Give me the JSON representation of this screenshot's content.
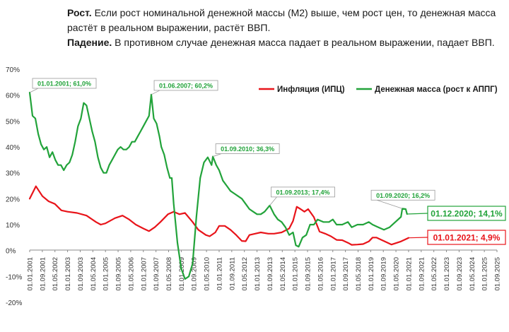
{
  "heading": {
    "growth_label": "Рост.",
    "growth_text": "Если рост номинальной денежной массы (М2) выше, чем рост цен, то денежная масса растёт в реальном выражении, растёт ВВП.",
    "decline_label": "Падение.",
    "decline_text": "В противном случае денежная масса падает в реальном выражении, падает ВВП."
  },
  "chart_data": {
    "type": "line",
    "title": "",
    "xlabel": "",
    "ylabel": "",
    "ylim": [
      -20,
      70
    ],
    "y_ticks": [
      "-20%",
      "-10%",
      "0%",
      "10%",
      "20%",
      "30%",
      "40%",
      "50%",
      "60%",
      "70%"
    ],
    "x_ticks": [
      "01.01.2001",
      "01.09.2001",
      "01.05.2002",
      "01.01.2003",
      "01.09.2003",
      "01.05.2004",
      "01.01.2005",
      "01.09.2005",
      "01.05.2006",
      "01.01.2007",
      "01.09.2007",
      "01.05.2008",
      "01.01.2009",
      "01.09.2009",
      "01.05.2010",
      "01.01.2011",
      "01.09.2011",
      "01.05.2012",
      "01.01.2013",
      "01.09.2013",
      "01.05.2014",
      "01.01.2015",
      "01.09.2015",
      "01.05.2016",
      "01.01.2017",
      "01.09.2017",
      "01.05.2018",
      "01.01.2019",
      "01.09.2019",
      "01.05.2020",
      "01.01.2021",
      "01.09.2021",
      "01.05.2022",
      "01.01.2023",
      "01.09.2023",
      "01.05.2024",
      "01.01.2025",
      "01.09.2025"
    ],
    "grid": false,
    "legend": "top-right",
    "series": [
      {
        "name": "Инфляция (ИПЦ)",
        "color": "#e8141a",
        "points": [
          [
            2001.0,
            20
          ],
          [
            2001.33,
            24.8
          ],
          [
            2001.67,
            21
          ],
          [
            2002.0,
            19
          ],
          [
            2002.33,
            18
          ],
          [
            2002.67,
            15.5
          ],
          [
            2003.0,
            15
          ],
          [
            2003.5,
            14.5
          ],
          [
            2004.0,
            13.5
          ],
          [
            2004.5,
            11
          ],
          [
            2004.75,
            10
          ],
          [
            2005.0,
            10.5
          ],
          [
            2005.5,
            12.5
          ],
          [
            2005.9,
            13.5
          ],
          [
            2006.25,
            12
          ],
          [
            2006.6,
            10
          ],
          [
            2007.0,
            8.5
          ],
          [
            2007.3,
            7.5
          ],
          [
            2007.6,
            9
          ],
          [
            2007.9,
            11
          ],
          [
            2008.3,
            14
          ],
          [
            2008.6,
            15
          ],
          [
            2008.9,
            14
          ],
          [
            2009.2,
            14.5
          ],
          [
            2009.6,
            11
          ],
          [
            2009.9,
            8
          ],
          [
            2010.3,
            6
          ],
          [
            2010.5,
            5.5
          ],
          [
            2010.8,
            7
          ],
          [
            2011.0,
            9.5
          ],
          [
            2011.3,
            9.5
          ],
          [
            2011.6,
            8
          ],
          [
            2011.9,
            6
          ],
          [
            2012.2,
            3.7
          ],
          [
            2012.4,
            3.6
          ],
          [
            2012.6,
            6
          ],
          [
            2012.9,
            6.5
          ],
          [
            2013.2,
            7
          ],
          [
            2013.6,
            6.5
          ],
          [
            2013.9,
            6.5
          ],
          [
            2014.3,
            7
          ],
          [
            2014.7,
            8.5
          ],
          [
            2014.9,
            11.4
          ],
          [
            2015.1,
            16.9
          ],
          [
            2015.3,
            16
          ],
          [
            2015.5,
            15
          ],
          [
            2015.7,
            16
          ],
          [
            2016.0,
            12.9
          ],
          [
            2016.3,
            7.3
          ],
          [
            2016.6,
            6.5
          ],
          [
            2016.9,
            5.5
          ],
          [
            2017.2,
            4.1
          ],
          [
            2017.5,
            4
          ],
          [
            2017.8,
            3
          ],
          [
            2018.0,
            2.2
          ],
          [
            2018.3,
            2.3
          ],
          [
            2018.6,
            2.5
          ],
          [
            2018.9,
            3.5
          ],
          [
            2019.1,
            5
          ],
          [
            2019.3,
            5
          ],
          [
            2019.6,
            4
          ],
          [
            2019.9,
            3
          ],
          [
            2020.1,
            2.3
          ],
          [
            2020.3,
            2.8
          ],
          [
            2020.6,
            3.5
          ],
          [
            2020.8,
            4.2
          ],
          [
            2021.0,
            4.9
          ]
        ]
      },
      {
        "name": "Денежная масса (рост к АППГ)",
        "color": "#22a33a",
        "points": [
          [
            2001.0,
            61.0
          ],
          [
            2001.15,
            52
          ],
          [
            2001.3,
            51
          ],
          [
            2001.45,
            45
          ],
          [
            2001.6,
            41
          ],
          [
            2001.75,
            39
          ],
          [
            2001.9,
            40
          ],
          [
            2002.05,
            36
          ],
          [
            2002.2,
            38
          ],
          [
            2002.35,
            35
          ],
          [
            2002.5,
            33
          ],
          [
            2002.65,
            33
          ],
          [
            2002.8,
            31
          ],
          [
            2002.95,
            33
          ],
          [
            2003.1,
            34
          ],
          [
            2003.25,
            37
          ],
          [
            2003.4,
            42
          ],
          [
            2003.55,
            48
          ],
          [
            2003.7,
            51
          ],
          [
            2003.85,
            57
          ],
          [
            2004.0,
            56
          ],
          [
            2004.15,
            51
          ],
          [
            2004.3,
            46
          ],
          [
            2004.45,
            42
          ],
          [
            2004.6,
            36
          ],
          [
            2004.75,
            32
          ],
          [
            2004.9,
            30
          ],
          [
            2005.05,
            30
          ],
          [
            2005.2,
            33
          ],
          [
            2005.35,
            35
          ],
          [
            2005.5,
            37
          ],
          [
            2005.65,
            39
          ],
          [
            2005.8,
            40
          ],
          [
            2005.95,
            39
          ],
          [
            2006.1,
            39
          ],
          [
            2006.25,
            40
          ],
          [
            2006.4,
            42
          ],
          [
            2006.55,
            42
          ],
          [
            2006.7,
            44
          ],
          [
            2006.85,
            46
          ],
          [
            2007.0,
            48
          ],
          [
            2007.15,
            50
          ],
          [
            2007.3,
            52
          ],
          [
            2007.42,
            60.2
          ],
          [
            2007.55,
            51
          ],
          [
            2007.7,
            49
          ],
          [
            2007.85,
            44
          ],
          [
            2007.95,
            40
          ],
          [
            2008.1,
            37
          ],
          [
            2008.25,
            32
          ],
          [
            2008.4,
            28
          ],
          [
            2008.5,
            28
          ],
          [
            2008.6,
            18
          ],
          [
            2008.8,
            3
          ],
          [
            2009.0,
            -7
          ],
          [
            2009.2,
            -11
          ],
          [
            2009.4,
            -10
          ],
          [
            2009.6,
            -5
          ],
          [
            2009.8,
            13
          ],
          [
            2010.0,
            28
          ],
          [
            2010.2,
            34
          ],
          [
            2010.4,
            36
          ],
          [
            2010.6,
            33
          ],
          [
            2010.67,
            36.3
          ],
          [
            2010.85,
            33
          ],
          [
            2011.0,
            31
          ],
          [
            2011.2,
            27
          ],
          [
            2011.4,
            25
          ],
          [
            2011.6,
            23
          ],
          [
            2011.8,
            22
          ],
          [
            2012.0,
            21
          ],
          [
            2012.2,
            20
          ],
          [
            2012.4,
            18
          ],
          [
            2012.6,
            16
          ],
          [
            2012.8,
            15
          ],
          [
            2013.0,
            14
          ],
          [
            2013.2,
            14
          ],
          [
            2013.4,
            15
          ],
          [
            2013.67,
            17.4
          ],
          [
            2013.9,
            14
          ],
          [
            2014.1,
            12
          ],
          [
            2014.3,
            11
          ],
          [
            2014.5,
            9
          ],
          [
            2014.7,
            6
          ],
          [
            2014.9,
            7
          ],
          [
            2015.05,
            2
          ],
          [
            2015.2,
            1.5
          ],
          [
            2015.4,
            5
          ],
          [
            2015.6,
            6
          ],
          [
            2015.8,
            10
          ],
          [
            2016.0,
            10
          ],
          [
            2016.2,
            12
          ],
          [
            2016.5,
            11
          ],
          [
            2016.8,
            11
          ],
          [
            2017.0,
            12
          ],
          [
            2017.2,
            10
          ],
          [
            2017.5,
            10
          ],
          [
            2017.8,
            11
          ],
          [
            2018.0,
            9
          ],
          [
            2018.3,
            10
          ],
          [
            2018.6,
            10
          ],
          [
            2018.9,
            11
          ],
          [
            2019.1,
            10
          ],
          [
            2019.4,
            9
          ],
          [
            2019.7,
            8
          ],
          [
            2020.0,
            9
          ],
          [
            2020.3,
            11
          ],
          [
            2020.6,
            13
          ],
          [
            2020.67,
            16.2
          ],
          [
            2020.85,
            16
          ],
          [
            2020.92,
            14.1
          ]
        ]
      }
    ],
    "annotations": [
      {
        "text": "01.01.2001; 61,0%",
        "series": 1,
        "x": 2001.0,
        "y": 61.0
      },
      {
        "text": "01.06.2007; 60,2%",
        "series": 1,
        "x": 2007.42,
        "y": 60.2
      },
      {
        "text": "01.09.2010; 36,3%",
        "series": 1,
        "x": 2010.67,
        "y": 36.3
      },
      {
        "text": "01.09.2013; 17,4%",
        "series": 1,
        "x": 2013.67,
        "y": 17.4
      },
      {
        "text": "01.09.2020; 16,2%",
        "series": 1,
        "x": 2020.67,
        "y": 16.2
      }
    ],
    "end_labels": [
      {
        "text": "01.12.2020; 14,1%",
        "series": 1
      },
      {
        "text": "01.01.2021; 4,9%",
        "series": 0
      }
    ]
  }
}
